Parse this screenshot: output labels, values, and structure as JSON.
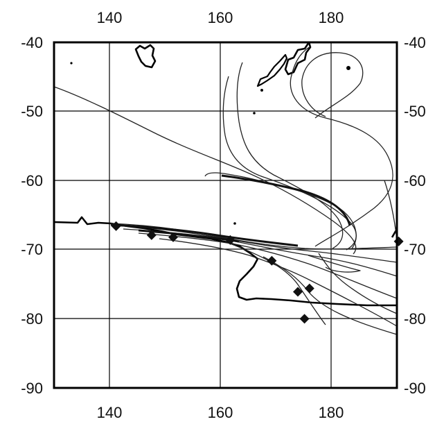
{
  "map": {
    "x_ticks": [
      "140",
      "160",
      "180"
    ],
    "y_ticks": [
      "-40",
      "-50",
      "-60",
      "-70",
      "-80",
      "-90"
    ],
    "colors": {
      "line": "#222222",
      "frame": "#000000",
      "marker": "#111111"
    },
    "markers": [
      {
        "lon": 141.2,
        "lat": -66.6
      },
      {
        "lon": 147.6,
        "lat": -67.9
      },
      {
        "lon": 151.5,
        "lat": -68.2
      },
      {
        "lon": 161.8,
        "lat": -68.6
      },
      {
        "lon": 169.3,
        "lat": -71.6
      },
      {
        "lon": 174.0,
        "lat": -76.1
      },
      {
        "lon": 176.1,
        "lat": -75.6
      },
      {
        "lon": 175.2,
        "lat": -80.0
      },
      {
        "lon": 192.2,
        "lat": -68.8
      }
    ]
  }
}
